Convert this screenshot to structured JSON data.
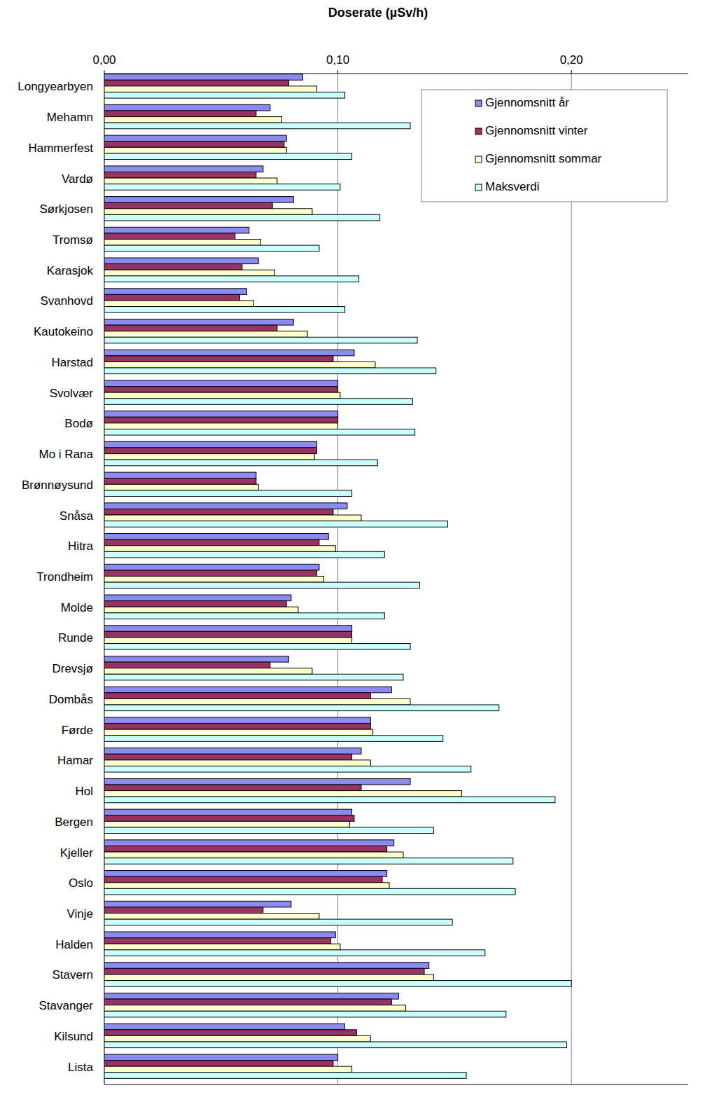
{
  "chart_data": {
    "type": "bar",
    "orientation": "horizontal",
    "title": "Doserate (µSv/h)",
    "categories": [
      "Longyearbyen",
      "Mehamn",
      "Hammerfest",
      "Vardø",
      "Sørkjosen",
      "Tromsø",
      "Karasjok",
      "Svanhovd",
      "Kautokeino",
      "Harstad",
      "Svolvær",
      "Bodø",
      "Mo i Rana",
      "Brønnøysund",
      "Snåsa",
      "Hitra",
      "Trondheim",
      "Molde",
      "Runde",
      "Drevsjø",
      "Dombås",
      "Førde",
      "Hamar",
      "Hol",
      "Bergen",
      "Kjeller",
      "Oslo",
      "Vinje",
      "Halden",
      "Stavern",
      "Stavanger",
      "Kilsund",
      "Lista"
    ],
    "series": [
      {
        "name": "Gjennomsnitt år",
        "color": "#8c8cf0",
        "values": [
          0.085,
          0.071,
          0.078,
          0.068,
          0.081,
          0.062,
          0.066,
          0.061,
          0.081,
          0.107,
          0.1,
          0.1,
          0.091,
          0.065,
          0.104,
          0.096,
          0.092,
          0.08,
          0.106,
          0.079,
          0.123,
          0.114,
          0.11,
          0.131,
          0.106,
          0.124,
          0.121,
          0.08,
          0.099,
          0.139,
          0.126,
          0.103,
          0.1
        ]
      },
      {
        "name": "Gjennomsnitt vinter",
        "color": "#993366",
        "values": [
          0.079,
          0.065,
          0.077,
          0.065,
          0.072,
          0.056,
          0.059,
          0.058,
          0.074,
          0.098,
          0.1,
          0.1,
          0.091,
          0.065,
          0.098,
          0.092,
          0.091,
          0.078,
          0.106,
          0.071,
          0.114,
          0.114,
          0.106,
          0.11,
          0.107,
          0.121,
          0.119,
          0.068,
          0.097,
          0.137,
          0.123,
          0.108,
          0.098
        ]
      },
      {
        "name": "Gjennomsnitt sommar",
        "color": "#ffffcc",
        "values": [
          0.091,
          0.076,
          0.078,
          0.074,
          0.089,
          0.067,
          0.073,
          0.064,
          0.087,
          0.116,
          0.101,
          0.1,
          0.09,
          0.066,
          0.11,
          0.099,
          0.094,
          0.083,
          0.106,
          0.089,
          0.131,
          0.115,
          0.114,
          0.153,
          0.105,
          0.128,
          0.122,
          0.092,
          0.101,
          0.141,
          0.129,
          0.114,
          0.106
        ]
      },
      {
        "name": "Maksverdi",
        "color": "#ccffff",
        "values": [
          0.103,
          0.131,
          0.106,
          0.101,
          0.118,
          0.092,
          0.109,
          0.103,
          0.134,
          0.142,
          0.132,
          0.133,
          0.117,
          0.106,
          0.147,
          0.12,
          0.135,
          0.12,
          0.131,
          0.128,
          0.169,
          0.145,
          0.157,
          0.193,
          0.141,
          0.175,
          0.176,
          0.149,
          0.163,
          0.2,
          0.172,
          0.198,
          0.155
        ]
      }
    ],
    "xlim": [
      0,
      0.25
    ],
    "xticks": [
      {
        "value": 0,
        "label": "0,00"
      },
      {
        "value": 0.1,
        "label": "0,10"
      },
      {
        "value": 0.2,
        "label": "0,20"
      }
    ],
    "grid": true,
    "legend": "upper right"
  }
}
